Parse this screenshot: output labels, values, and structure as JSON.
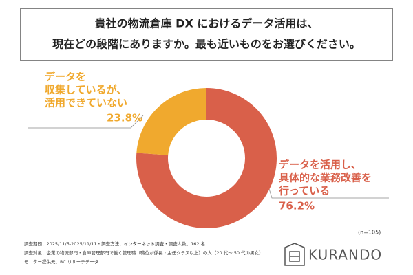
{
  "chart_data": {
    "type": "donut",
    "title": [
      "貴社の物流倉庫 DX におけるデータ活用は、",
      "現在どの段階にありますか。最も近いものをお選びください。"
    ],
    "categories": [
      [
        "データを活用し、",
        "具体的な業務改善を",
        "行っている"
      ],
      [
        "データを",
        "収集しているが、",
        "活用できていない"
      ]
    ],
    "values": [
      76.2,
      23.8
    ],
    "value_labels": [
      "76.2%",
      "23.8%"
    ],
    "colors": [
      "#D9604A",
      "#F0A92E"
    ],
    "note": "(n=105)"
  },
  "footer": {
    "notes": [
      "調査期間：2025/11/5-2025/11/11・調査方法：インターネット調査・調査人数：162 名",
      "調査対象：企業の物流部門・倉庫管理部門で働く管理職（職位が係長・主任クラス以上）の人（20 代〜 50 代の男女）",
      "モニター提供元：RC リサーチデータ"
    ],
    "logo": "KURANDO"
  }
}
